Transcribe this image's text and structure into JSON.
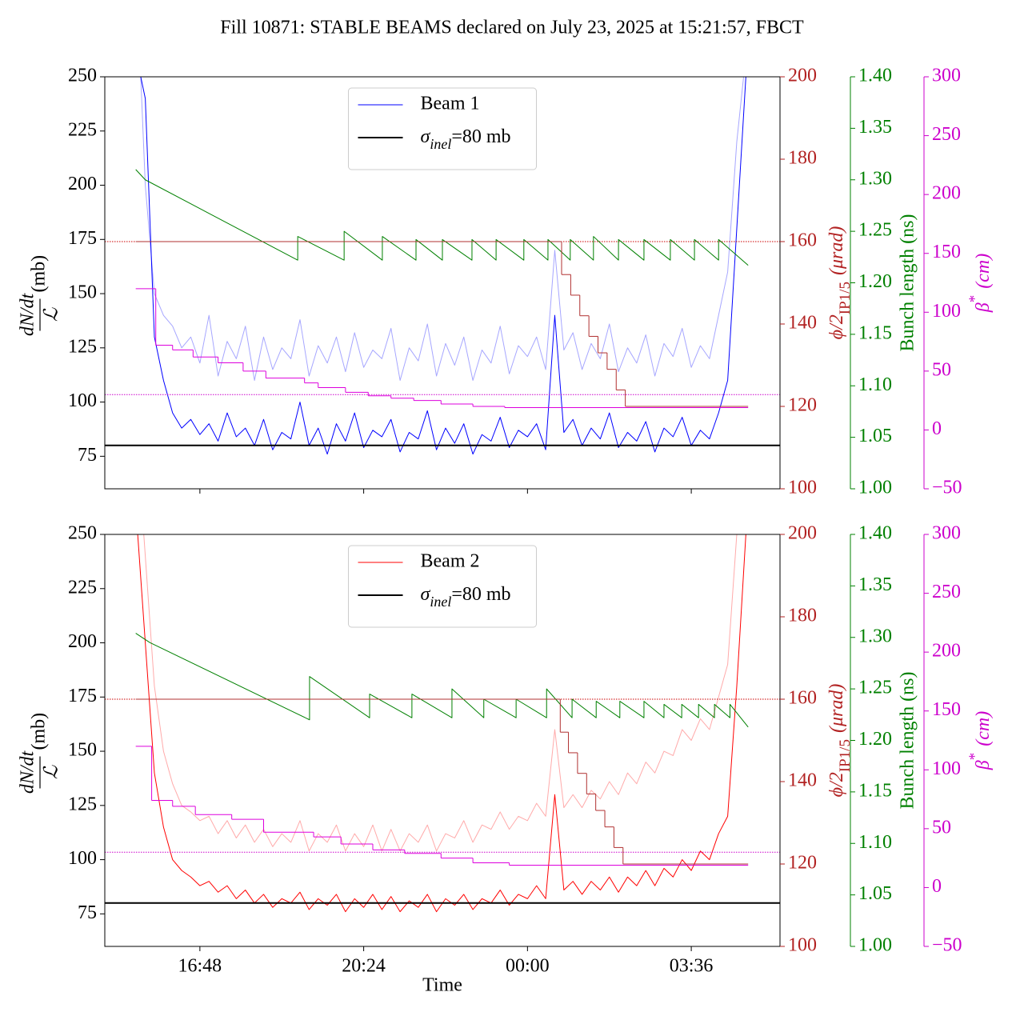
{
  "title": "Fill 10871: STABLE BEAMS declared on July 23, 2025 at 15:21:57, FBCT",
  "chart_data": [
    {
      "type": "line",
      "legend": "upper center",
      "xlim": [
        14.71,
        29.55
      ],
      "xticks": [
        16.8,
        20.4,
        24,
        27.6
      ],
      "ylim": [
        60,
        250
      ],
      "yticks": [
        75,
        100,
        125,
        150,
        175,
        200,
        225,
        250
      ],
      "ylabel": {
        "numerator": "dN/dt",
        "denominator": "ℒ",
        "unit": "(mb)"
      },
      "y2lim": [
        100,
        200
      ],
      "y2ticks": [
        100,
        120,
        140,
        160,
        180,
        200
      ],
      "y2color": "#b22222",
      "y2label": {
        "text": "ϕ/2",
        "subscript": "IP1/5",
        "unit": "(μrad)"
      },
      "y3lim": [
        1.0,
        1.4
      ],
      "y3ticks": [
        {
          "value": 1.0,
          "label": "1.00"
        },
        1.05,
        {
          "value": 1.1,
          "label": "1.10"
        },
        1.15,
        {
          "value": 1.2,
          "label": "1.20"
        },
        1.25,
        {
          "value": 1.3,
          "label": "1.30"
        },
        1.35,
        {
          "value": 1.4,
          "label": "1.40"
        }
      ],
      "y3color": "#008000",
      "y3label": "Bunch length (ns)",
      "y4lim": [
        -50,
        300
      ],
      "y4ticks": [
        {
          "value": -50,
          "label": "−50"
        },
        0,
        50,
        100,
        150,
        200,
        250,
        300
      ],
      "y4color": "#cc00cc",
      "y4label": {
        "text": "β",
        "superscript": "*",
        "unit": "(cm)"
      },
      "x": [
        15.4,
        15.6,
        15.8,
        16,
        16.2,
        16.4,
        16.6,
        16.8,
        17,
        17.2,
        17.4,
        17.6,
        17.8,
        18,
        18.2,
        18.4,
        18.6,
        18.8,
        19,
        19.2,
        19.4,
        19.6,
        19.8,
        20,
        20.2,
        20.4,
        20.6,
        20.8,
        21,
        21.2,
        21.4,
        21.6,
        21.8,
        22,
        22.2,
        22.4,
        22.6,
        22.8,
        23,
        23.2,
        23.4,
        23.6,
        23.8,
        24,
        24.2,
        24.4,
        24.6,
        24.8,
        25,
        25.2,
        25.4,
        25.6,
        25.8,
        26,
        26.2,
        26.4,
        26.6,
        26.8,
        27,
        27.2,
        27.4,
        27.6,
        27.8,
        28,
        28.2,
        28.4,
        28.6,
        28.8
      ],
      "series": [
        {
          "color": "#a6a6ff",
          "values": [
            300,
            200,
            150,
            140,
            135,
            125,
            130,
            118,
            140,
            112,
            128,
            120,
            135,
            110,
            130,
            115,
            125,
            120,
            138,
            112,
            126,
            118,
            130,
            114,
            132,
            116,
            124,
            120,
            134,
            110,
            125,
            119,
            136,
            112,
            127,
            117,
            130,
            110,
            124,
            118,
            135,
            113,
            126,
            121,
            130,
            115,
            170,
            124,
            132,
            115,
            127,
            120,
            136,
            114,
            125,
            118,
            131,
            112,
            127,
            121,
            134,
            116,
            126,
            120,
            140,
            160,
            220,
            260
          ]
        },
        {
          "name": "Beam 1",
          "color": "#0000ff",
          "values": [
            260,
            240,
            130,
            110,
            95,
            88,
            92,
            85,
            90,
            82,
            95,
            84,
            88,
            80,
            92,
            78,
            86,
            83,
            100,
            80,
            88,
            76,
            90,
            82,
            95,
            79,
            87,
            84,
            92,
            77,
            86,
            83,
            96,
            78,
            88,
            81,
            90,
            76,
            85,
            82,
            93,
            79,
            87,
            84,
            90,
            78,
            140,
            86,
            92,
            80,
            88,
            83,
            95,
            79,
            86,
            82,
            91,
            77,
            88,
            84,
            93,
            80,
            87,
            83,
            95,
            110,
            180,
            250
          ]
        },
        {
          "name": {
            "symbol": "σ",
            "subscript": "inel",
            "text": "=80 mb"
          },
          "color": "#000000",
          "hline": 80,
          "linewidth": 2
        },
        {
          "axis": "y2",
          "hline": 160,
          "color": "#cc0000",
          "dash": "dotted"
        },
        {
          "axis": "y4",
          "hline": 30,
          "color": "#cc00cc",
          "dash": "dotted"
        },
        {
          "axis": "y3",
          "color": "#008000",
          "x": [
            15.39,
            15.6,
            18.95,
            18.95,
            19.97,
            19.97,
            20.81,
            20.81,
            21.55,
            21.55,
            22.13,
            22.13,
            22.78,
            22.78,
            23.31,
            23.31,
            23.92,
            23.92,
            24.45,
            24.45,
            24.94,
            24.94,
            25.45,
            25.45,
            26.0,
            26.0,
            26.56,
            26.56,
            27.14,
            27.14,
            27.67,
            27.67,
            28.2,
            28.2,
            28.85
          ],
          "values": [
            1.31,
            1.3,
            1.222,
            1.245,
            1.222,
            1.25,
            1.222,
            1.245,
            1.222,
            1.242,
            1.222,
            1.242,
            1.222,
            1.242,
            1.222,
            1.242,
            1.222,
            1.242,
            1.222,
            1.242,
            1.222,
            1.242,
            1.222,
            1.245,
            1.222,
            1.242,
            1.222,
            1.242,
            1.222,
            1.242,
            1.222,
            1.242,
            1.222,
            1.242,
            1.217
          ]
        },
        {
          "axis": "y2",
          "color": "#b03030",
          "step": true,
          "x": [
            15.39,
            24.75,
            24.95,
            25.15,
            25.35,
            25.55,
            25.75,
            25.95,
            26.15,
            28.85
          ],
          "values": [
            160,
            152,
            147,
            142,
            137,
            133,
            129,
            124,
            120,
            120
          ]
        },
        {
          "axis": "y4",
          "color": "#dd00dd",
          "step": true,
          "x": [
            15.39,
            15.83,
            16.2,
            16.65,
            17.2,
            17.75,
            18.25,
            19.1,
            19.4,
            20.0,
            20.5,
            21.0,
            21.5,
            22.1,
            22.8,
            23.5,
            28.85
          ],
          "values": [
            120,
            72,
            68,
            62,
            57,
            50,
            44,
            40,
            36,
            32,
            29,
            27,
            25,
            22,
            20,
            19,
            19
          ]
        }
      ]
    },
    {
      "type": "line",
      "legend": "upper center",
      "xlim": [
        14.71,
        29.55
      ],
      "xticks": [
        {
          "value": 16.8,
          "label": "16:48"
        },
        {
          "value": 20.4,
          "label": "20:24"
        },
        {
          "value": 24,
          "label": "00:00"
        },
        {
          "value": 27.6,
          "label": "03:36"
        }
      ],
      "xlabel": "Time",
      "ylim": [
        60,
        250
      ],
      "yticks": [
        75,
        100,
        125,
        150,
        175,
        200,
        225,
        250
      ],
      "ylabel": {
        "numerator": "dN/dt",
        "denominator": "ℒ",
        "unit": "(mb)"
      },
      "y2lim": [
        100,
        200
      ],
      "y2ticks": [
        100,
        120,
        140,
        160,
        180,
        200
      ],
      "y2color": "#b22222",
      "y2label": {
        "text": "ϕ/2",
        "subscript": "IP1/5",
        "unit": "(μrad)"
      },
      "y3lim": [
        1.0,
        1.4
      ],
      "y3ticks": [
        {
          "value": 1.0,
          "label": "1.00"
        },
        1.05,
        {
          "value": 1.1,
          "label": "1.10"
        },
        1.15,
        {
          "value": 1.2,
          "label": "1.20"
        },
        1.25,
        {
          "value": 1.3,
          "label": "1.30"
        },
        1.35,
        {
          "value": 1.4,
          "label": "1.40"
        }
      ],
      "y3color": "#008000",
      "y3label": "Bunch length (ns)",
      "y4lim": [
        -50,
        300
      ],
      "y4ticks": [
        {
          "value": -50,
          "label": "−50"
        },
        0,
        50,
        100,
        150,
        200,
        250,
        300
      ],
      "y4color": "#cc00cc",
      "y4label": {
        "text": "β",
        "superscript": "*",
        "unit": "(cm)"
      },
      "x": [
        15.4,
        15.6,
        15.8,
        16,
        16.2,
        16.4,
        16.6,
        16.8,
        17,
        17.2,
        17.4,
        17.6,
        17.8,
        18,
        18.2,
        18.4,
        18.6,
        18.8,
        19,
        19.2,
        19.4,
        19.6,
        19.8,
        20,
        20.2,
        20.4,
        20.6,
        20.8,
        21,
        21.2,
        21.4,
        21.6,
        21.8,
        22,
        22.2,
        22.4,
        22.6,
        22.8,
        23,
        23.2,
        23.4,
        23.6,
        23.8,
        24,
        24.2,
        24.4,
        24.6,
        24.8,
        25,
        25.2,
        25.4,
        25.6,
        25.8,
        26,
        26.2,
        26.4,
        26.6,
        26.8,
        27,
        27.2,
        27.4,
        27.6,
        27.8,
        28,
        28.2,
        28.4,
        28.6,
        28.8
      ],
      "series": [
        {
          "color": "#ffaaaa",
          "values": [
            300,
            240,
            180,
            150,
            135,
            125,
            122,
            118,
            120,
            112,
            118,
            110,
            116,
            108,
            114,
            106,
            112,
            108,
            118,
            104,
            112,
            108,
            116,
            104,
            112,
            106,
            116,
            104,
            114,
            104,
            112,
            108,
            116,
            104,
            112,
            110,
            118,
            108,
            116,
            114,
            122,
            114,
            120,
            118,
            126,
            120,
            160,
            124,
            130,
            124,
            132,
            128,
            136,
            130,
            140,
            135,
            145,
            140,
            150,
            148,
            160,
            155,
            165,
            160,
            175,
            190,
            250,
            300
          ]
        },
        {
          "name": "Beam 2",
          "color": "#ff0000",
          "values": [
            260,
            200,
            140,
            115,
            100,
            95,
            92,
            88,
            90,
            85,
            88,
            82,
            86,
            80,
            84,
            78,
            82,
            80,
            85,
            77,
            82,
            79,
            84,
            76,
            82,
            78,
            84,
            77,
            83,
            76,
            81,
            78,
            84,
            76,
            82,
            79,
            84,
            77,
            82,
            80,
            86,
            79,
            84,
            82,
            88,
            82,
            130,
            86,
            90,
            84,
            90,
            86,
            92,
            85,
            92,
            88,
            95,
            88,
            96,
            92,
            100,
            95,
            104,
            100,
            112,
            120,
            180,
            250
          ]
        },
        {
          "name": {
            "symbol": "σ",
            "subscript": "inel",
            "text": "=80 mb"
          },
          "color": "#000000",
          "hline": 80,
          "linewidth": 2
        },
        {
          "axis": "y2",
          "hline": 160,
          "color": "#cc0000",
          "dash": "dotted"
        },
        {
          "axis": "y4",
          "hline": 30,
          "color": "#cc00cc",
          "dash": "dotted"
        },
        {
          "axis": "y3",
          "color": "#008000",
          "x": [
            15.39,
            15.7,
            19.21,
            19.21,
            20.53,
            20.53,
            21.46,
            21.46,
            22.34,
            22.34,
            23.04,
            23.04,
            23.75,
            23.75,
            24.42,
            24.42,
            24.98,
            24.98,
            25.51,
            25.51,
            26.03,
            26.03,
            26.56,
            26.56,
            27.0,
            27.0,
            27.39,
            27.39,
            27.76,
            27.76,
            28.11,
            28.11,
            28.45,
            28.45,
            28.85
          ],
          "values": [
            1.304,
            1.295,
            1.22,
            1.262,
            1.222,
            1.245,
            1.222,
            1.245,
            1.222,
            1.25,
            1.222,
            1.24,
            1.222,
            1.24,
            1.222,
            1.25,
            1.222,
            1.24,
            1.222,
            1.238,
            1.222,
            1.238,
            1.222,
            1.238,
            1.222,
            1.235,
            1.222,
            1.235,
            1.222,
            1.235,
            1.222,
            1.235,
            1.222,
            1.235,
            1.213
          ]
        },
        {
          "axis": "y2",
          "color": "#b03030",
          "step": true,
          "x": [
            15.39,
            24.72,
            24.9,
            25.1,
            25.3,
            25.5,
            25.7,
            25.9,
            26.1,
            28.85
          ],
          "values": [
            160,
            152,
            147,
            142,
            137,
            133,
            129,
            124,
            120,
            120
          ]
        },
        {
          "axis": "y4",
          "color": "#dd00dd",
          "step": true,
          "x": [
            15.39,
            15.74,
            16.2,
            16.7,
            17.5,
            18.2,
            19.3,
            19.9,
            20.6,
            21.3,
            22.1,
            22.8,
            23.6,
            28.85
          ],
          "values": [
            120,
            74,
            69,
            62,
            58,
            47,
            43,
            37,
            32,
            29,
            25,
            21,
            19,
            19
          ]
        }
      ]
    }
  ]
}
